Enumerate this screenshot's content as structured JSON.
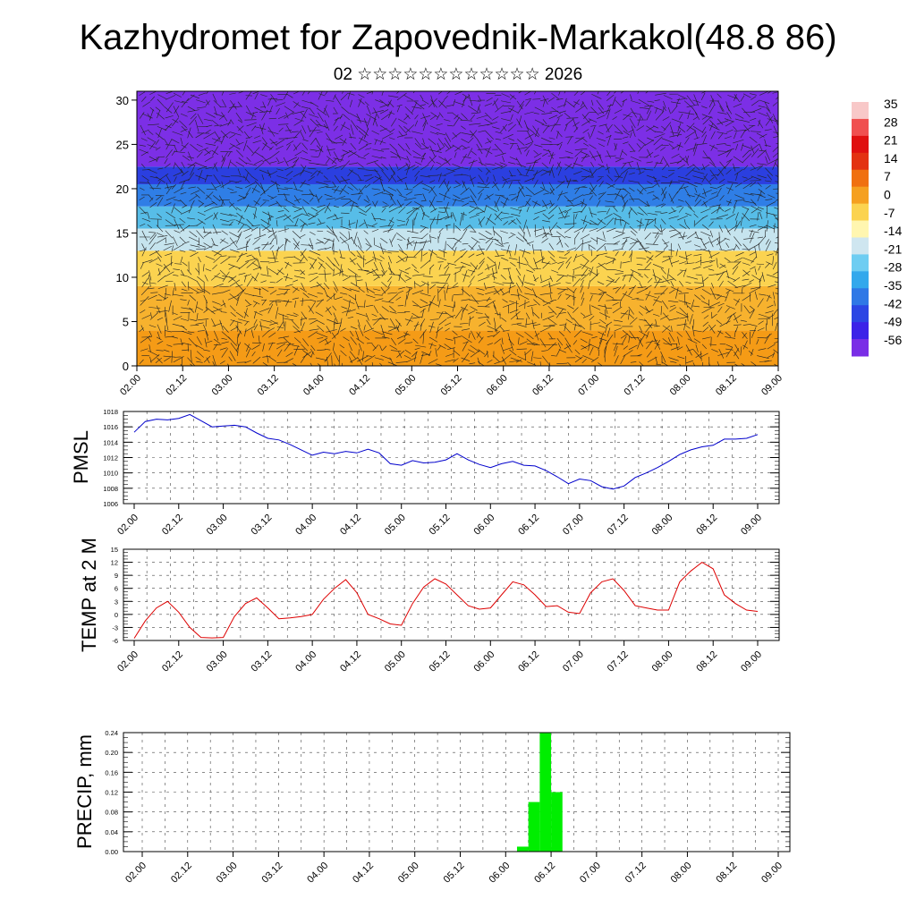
{
  "title": "Kazhydromet for Zapovednik-Markakol(48.8 86)",
  "subtitle": "02 ☆☆☆☆☆☆☆☆☆☆☆☆ 2026",
  "chart_data": [
    {
      "type": "heatmap",
      "name": "cross-section",
      "description_axis": "time vs level",
      "x_tick_labels": [
        "02.00",
        "02.12",
        "03.00",
        "03.12",
        "04.00",
        "04.12",
        "05.00",
        "05.12",
        "06.00",
        "06.12",
        "07.00",
        "07.12",
        "08.00",
        "08.12",
        "09.00"
      ],
      "y_ticks": [
        0,
        5,
        10,
        15,
        20,
        25,
        30
      ],
      "ylim": [
        0,
        31
      ],
      "colorbar_labels": [
        "35",
        "28",
        "21",
        "14",
        "7",
        "0",
        "-7",
        "-14",
        "-21",
        "-28",
        "-35",
        "-42",
        "-49",
        "-56"
      ],
      "layers": [
        {
          "from": 0,
          "to": 4,
          "color": "#f59b16"
        },
        {
          "from": 4,
          "to": 9,
          "color": "#f7b22e"
        },
        {
          "from": 9,
          "to": 13,
          "color": "#fbd350"
        },
        {
          "from": 13,
          "to": 15.5,
          "color": "#c6e4ee"
        },
        {
          "from": 15.5,
          "to": 18,
          "color": "#57bde8"
        },
        {
          "from": 18,
          "to": 20.5,
          "color": "#2f7ee6"
        },
        {
          "from": 20.5,
          "to": 22.5,
          "color": "#2b3fe0"
        },
        {
          "from": 22.5,
          "to": 31,
          "color": "#7c2fe6"
        }
      ]
    },
    {
      "type": "line",
      "name": "PMSL",
      "ylabel": "PMSL",
      "ylim": [
        1006,
        1018
      ],
      "y_ticks": [
        1006,
        1008,
        1010,
        1012,
        1014,
        1016,
        1018
      ],
      "x_tick_labels": [
        "02.00",
        "02.12",
        "03.00",
        "03.12",
        "04.00",
        "04.12",
        "05.00",
        "05.12",
        "06.00",
        "06.12",
        "07.00",
        "07.12",
        "08.00",
        "08.12",
        "09.00"
      ],
      "color": "#0000cc",
      "x": [
        0,
        3,
        6,
        9,
        12,
        15,
        18,
        21,
        24,
        27,
        30,
        33,
        36,
        39,
        42,
        45,
        48,
        51,
        54,
        57,
        60,
        63,
        66,
        69,
        72,
        75,
        78,
        81,
        84,
        87,
        90,
        93,
        96,
        99,
        102,
        105,
        108,
        111,
        114,
        117,
        120,
        123,
        126,
        129,
        132,
        135,
        138,
        141,
        144,
        147,
        150,
        153,
        156,
        159,
        162,
        165,
        168
      ],
      "values": [
        1015.3,
        1016.7,
        1017.0,
        1016.9,
        1017.1,
        1017.6,
        1016.8,
        1016.0,
        1016.1,
        1016.2,
        1016.0,
        1015.2,
        1014.5,
        1014.3,
        1013.7,
        1013.0,
        1012.3,
        1012.7,
        1012.5,
        1012.8,
        1012.6,
        1013.1,
        1012.6,
        1011.2,
        1011.0,
        1011.6,
        1011.3,
        1011.4,
        1011.7,
        1012.5,
        1011.7,
        1011.1,
        1010.7,
        1011.2,
        1011.5,
        1011.0,
        1010.9,
        1010.3,
        1009.5,
        1008.6,
        1009.2,
        1009.0,
        1008.2,
        1007.9,
        1008.3,
        1009.4,
        1010.0,
        1010.7,
        1011.5,
        1012.4,
        1013.0,
        1013.4,
        1013.6,
        1014.4,
        1014.4,
        1014.5,
        1015.0
      ]
    },
    {
      "type": "line",
      "name": "TEMP at 2 M",
      "ylabel": "TEMP at 2 M",
      "ylim": [
        -6,
        15
      ],
      "y_ticks": [
        -6,
        -3,
        0,
        3,
        6,
        9,
        12,
        15
      ],
      "x_tick_labels": [
        "02.00",
        "02.12",
        "03.00",
        "03.12",
        "04.00",
        "04.12",
        "05.00",
        "05.12",
        "06.00",
        "06.12",
        "07.00",
        "07.12",
        "08.00",
        "08.12",
        "09.00"
      ],
      "color": "#dd0000",
      "x": [
        0,
        3,
        6,
        9,
        12,
        15,
        18,
        21,
        24,
        27,
        30,
        33,
        36,
        39,
        42,
        45,
        48,
        51,
        54,
        57,
        60,
        63,
        66,
        69,
        72,
        75,
        78,
        81,
        84,
        87,
        90,
        93,
        96,
        99,
        102,
        105,
        108,
        111,
        114,
        117,
        120,
        123,
        126,
        129,
        132,
        135,
        138,
        141,
        144,
        147,
        150,
        153,
        156,
        159,
        162,
        165,
        168
      ],
      "values": [
        -5.5,
        -1.5,
        1.5,
        3.0,
        0.5,
        -3.0,
        -5.3,
        -5.4,
        -5.3,
        -0.5,
        2.5,
        3.8,
        1.5,
        -1.0,
        -0.8,
        -0.5,
        0.0,
        3.5,
        6.0,
        8.0,
        5.0,
        0.0,
        -1.0,
        -2.2,
        -2.5,
        2.5,
        6.3,
        8.2,
        7.0,
        4.5,
        2.0,
        1.2,
        1.5,
        4.5,
        7.5,
        6.8,
        4.5,
        1.8,
        2.0,
        0.5,
        0.2,
        5.0,
        7.5,
        8.2,
        5.5,
        2.0,
        1.5,
        1.0,
        1.0,
        7.5,
        10.0,
        12.0,
        10.5,
        4.5,
        2.5,
        1.0,
        0.7
      ]
    },
    {
      "type": "bar",
      "name": "PRECIP, mm",
      "ylabel": "PRECIP, mm",
      "ylim": [
        0,
        0.24
      ],
      "y_ticks": [
        "0.00",
        "0.04",
        "0.08",
        "0.12",
        "0.16",
        "0.20",
        "0.24"
      ],
      "x_tick_labels": [
        "02.00",
        "02.12",
        "03.00",
        "03.12",
        "04.00",
        "04.12",
        "05.00",
        "05.12",
        "06.00",
        "06.12",
        "07.00",
        "07.12",
        "08.00",
        "08.12",
        "09.00"
      ],
      "color": "#00ee00",
      "bars": [
        {
          "start": 99,
          "end": 102,
          "value": 0.01
        },
        {
          "start": 102,
          "end": 105,
          "value": 0.1
        },
        {
          "start": 105,
          "end": 108,
          "value": 0.24
        },
        {
          "start": 108,
          "end": 111,
          "value": 0.12
        }
      ]
    }
  ]
}
